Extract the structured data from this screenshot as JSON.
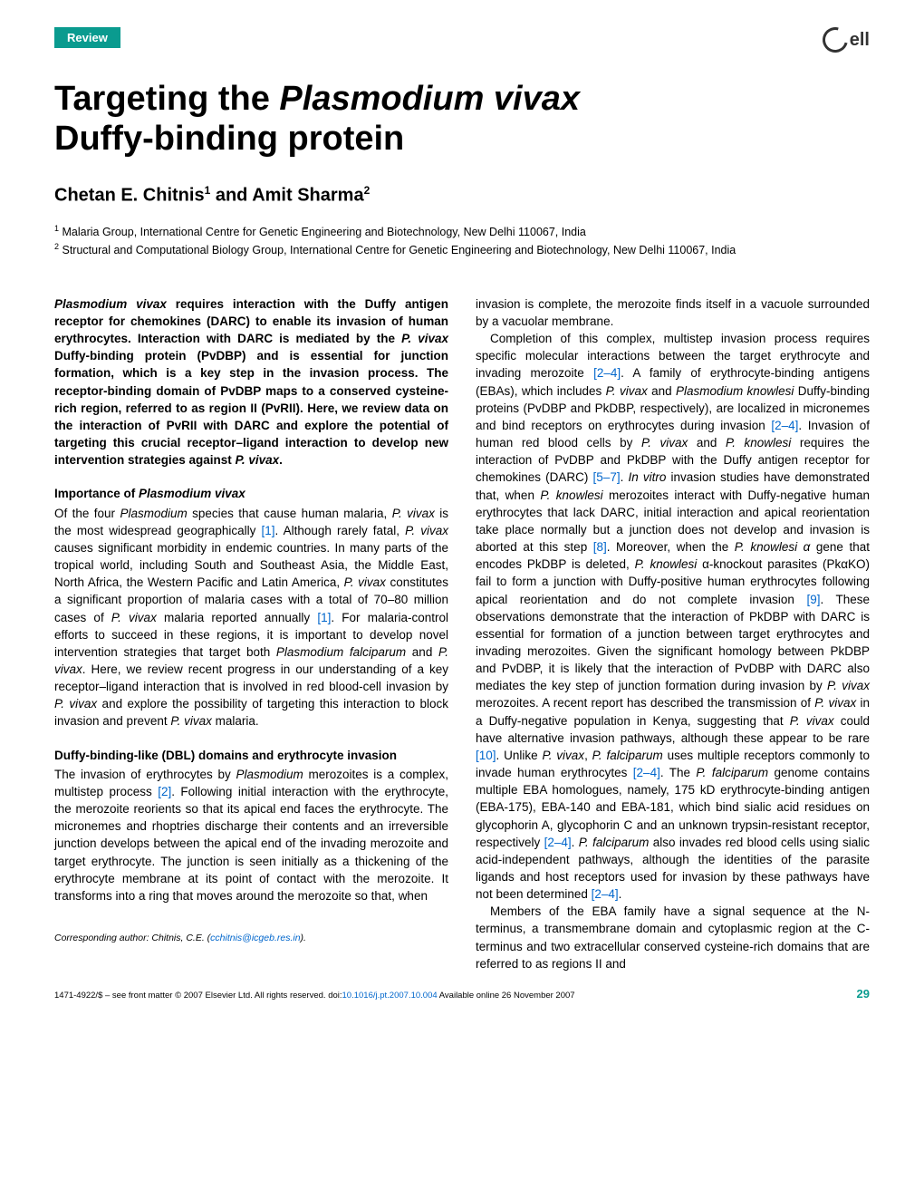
{
  "header": {
    "badge": "Review",
    "logo_text": "ell"
  },
  "title": {
    "line1_pre": "Targeting the ",
    "line1_italic": "Plasmodium vivax",
    "line2": "Duffy-binding protein"
  },
  "authors": {
    "a1": "Chetan E. Chitnis",
    "sup1": "1",
    "sep": " and ",
    "a2": "Amit Sharma",
    "sup2": "2"
  },
  "affiliations": {
    "aff1_sup": "1",
    "aff1": " Malaria Group, International Centre for Genetic Engineering and Biotechnology, New Delhi 110067, India",
    "aff2_sup": "2",
    "aff2": " Structural and Computational Biology Group, International Centre for Genetic Engineering and Biotechnology, New Delhi 110067, India"
  },
  "abstract": {
    "s1_italic": "Plasmodium vivax",
    "s1": " requires interaction with the Duffy antigen receptor for chemokines (DARC) to enable its invasion of human erythrocytes. Interaction with DARC is mediated by the ",
    "s2_italic": "P. vivax",
    "s2": " Duffy-binding protein (PvDBP) and is essential for junction formation, which is a key step in the invasion process. The receptor-binding domain of PvDBP maps to a conserved cysteine-rich region, referred to as region II (PvRII). Here, we review data on the interaction of PvRII with DARC and explore the potential of targeting this crucial receptor–ligand interaction to develop new intervention strategies against ",
    "s3_italic": "P. vivax",
    "s3": "."
  },
  "sec1": {
    "heading_pre": "Importance of ",
    "heading_italic": "Plasmodium vivax",
    "p1a": "Of the four ",
    "p1a_i": "Plasmodium",
    "p1b": " species that cause human malaria, ",
    "p1b_i": "P. vivax",
    "p1c": " is the most widespread geographically ",
    "ref1": "[1]",
    "p1d": ". Although rarely fatal, ",
    "p1d_i": "P. vivax",
    "p1e": " causes significant morbidity in endemic countries. In many parts of the tropical world, including South and Southeast Asia, the Middle East, North Africa, the Western Pacific and Latin America, ",
    "p1e_i": "P. vivax",
    "p1f": " constitutes a significant proportion of malaria cases with a total of 70–80 million cases of ",
    "p1f_i": "P. vivax",
    "p1g": " malaria reported annually ",
    "ref1b": "[1]",
    "p1h": ". For malaria-control efforts to succeed in these regions, it is important to develop novel intervention strategies that target both ",
    "p1h_i": "Plasmodium falciparum",
    "p1i": " and ",
    "p1i_i": "P. vivax",
    "p1j": ". Here, we review recent progress in our understanding of a key receptor–ligand interaction that is involved in red blood-cell invasion by ",
    "p1j_i": "P. vivax",
    "p1k": " and explore the possibility of targeting this interaction to block invasion and prevent ",
    "p1k_i": "P. vivax",
    "p1l": " malaria."
  },
  "sec2": {
    "heading": "Duffy-binding-like (DBL) domains and erythrocyte invasion",
    "p1a": "The invasion of erythrocytes by ",
    "p1a_i": "Plasmodium",
    "p1b": " merozoites is a complex, multistep process ",
    "ref2": "[2]",
    "p1c": ". Following initial interaction with the erythrocyte, the merozoite reorients so that its apical end faces the erythrocyte. The micronemes and rhoptries discharge their contents and an irreversible junction develops between the apical end of the invading merozoite and target erythrocyte. The junction is seen initially as a thickening of the erythrocyte membrane at its point of contact with the merozoite. It transforms into a ring that moves around the merozoite so that, when"
  },
  "col2": {
    "p1": "invasion is complete, the merozoite finds itself in a vacuole surrounded by a vacuolar membrane.",
    "p2a": "Completion of this complex, multistep invasion process requires specific molecular interactions between the target erythrocyte and invading merozoite ",
    "ref24a": "[2–4]",
    "p2b": ". A family of erythrocyte-binding antigens (EBAs), which includes ",
    "p2b_i": "P. vivax",
    "p2c": " and ",
    "p2c_i": "Plasmodium knowlesi",
    "p2d": " Duffy-binding proteins (PvDBP and PkDBP, respectively), are localized in micronemes and bind receptors on erythrocytes during invasion ",
    "ref24b": "[2–4]",
    "p2e": ". Invasion of human red blood cells by ",
    "p2e_i": "P. vivax",
    "p2f": " and ",
    "p2f_i": "P. knowlesi",
    "p2g": " requires the interaction of PvDBP and PkDBP with the Duffy antigen receptor for chemokines (DARC) ",
    "ref57": "[5–7]",
    "p2h": ". ",
    "p2h_i": "In vitro",
    "p2i": " invasion studies have demonstrated that, when ",
    "p2i_i": "P. knowlesi",
    "p2j": " merozoites interact with Duffy-negative human erythrocytes that lack DARC, initial interaction and apical reorientation take place normally but a junction does not develop and invasion is aborted at this step ",
    "ref8": "[8]",
    "p2k": ". Moreover, when the ",
    "p2k_i": "P. knowlesi α",
    "p2l": " gene that encodes PkDBP is deleted, ",
    "p2l_i": "P. knowlesi",
    "p2m": " α-knockout parasites (PkαKO) fail to form a junction with Duffy-positive human erythrocytes following apical reorientation and do not complete invasion ",
    "ref9": "[9]",
    "p2n": ". These observations demonstrate that the interaction of PkDBP with DARC is essential for formation of a junction between target erythrocytes and invading merozoites. Given the significant homology between PkDBP and PvDBP, it is likely that the interaction of PvDBP with DARC also mediates the key step of junction formation during invasion by ",
    "p2n_i": "P. vivax",
    "p2o": " merozoites. A recent report has described the transmission of ",
    "p2o_i": "P. vivax",
    "p2p": " in a Duffy-negative population in Kenya, suggesting that ",
    "p2p_i": "P. vivax",
    "p2q": " could have alternative invasion pathways, although these appear to be rare ",
    "ref10": "[10]",
    "p2r": ". Unlike ",
    "p2r_i": "P. vivax",
    "p2s": ", ",
    "p2s_i": "P. falciparum",
    "p2t": " uses multiple receptors commonly to invade human erythrocytes ",
    "ref24c": "[2–4]",
    "p2u": ". The ",
    "p2u_i": "P. falciparum",
    "p2v": " genome contains multiple EBA homologues, namely, 175 kD erythrocyte-binding antigen (EBA-175), EBA-140 and EBA-181, which bind sialic acid residues on glycophorin A, glycophorin C and an unknown trypsin-resistant receptor, respectively ",
    "ref24d": "[2–4]",
    "p2w": ". ",
    "p2w_i": "P. falciparum",
    "p2x": " also invades red blood cells using sialic acid-independent pathways, although the identities of the parasite ligands and host receptors used for invasion by these pathways have not been determined ",
    "ref24e": "[2–4]",
    "p2y": ".",
    "p3": "Members of the EBA family have a signal sequence at the N-terminus, a transmembrane domain and cytoplasmic region at the C-terminus and two extracellular conserved cysteine-rich domains that are referred to as regions II and"
  },
  "footnote": {
    "label": "Corresponding author:",
    "name": " Chitnis, C.E. (",
    "email": "cchitnis@icgeb.res.in",
    "close": ")."
  },
  "footer": {
    "left_pre": "1471-4922/$ – see front matter © 2007 Elsevier Ltd. All rights reserved. doi:",
    "doi": "10.1016/j.pt.2007.10.004",
    "left_post": " Available online 26 November 2007",
    "page": "29"
  },
  "colors": {
    "accent": "#0a9b8f",
    "link": "#0066cc",
    "text": "#000000",
    "bg": "#ffffff"
  }
}
